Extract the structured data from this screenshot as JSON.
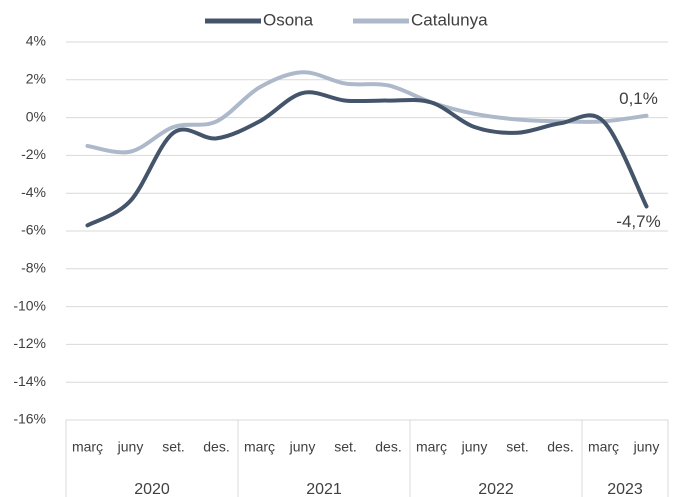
{
  "chart_data": {
    "type": "line",
    "categories": [
      "març",
      "juny",
      "set.",
      "des.",
      "març",
      "juny",
      "set.",
      "des.",
      "març",
      "juny",
      "set.",
      "des.",
      "març",
      "juny"
    ],
    "year_groups": [
      {
        "label": "2020",
        "span": 4
      },
      {
        "label": "2021",
        "span": 4
      },
      {
        "label": "2022",
        "span": 4
      },
      {
        "label": "2023",
        "span": 2
      }
    ],
    "series": [
      {
        "name": "Osona",
        "color": "#44546a",
        "values": [
          -5.7,
          -4.4,
          -0.8,
          -1.1,
          -0.2,
          1.3,
          0.9,
          0.9,
          0.8,
          -0.5,
          -0.8,
          -0.3,
          -0.2,
          -4.7
        ],
        "value_labels": [
          null,
          null,
          null,
          null,
          null,
          null,
          null,
          null,
          null,
          null,
          null,
          null,
          null,
          "-4,7%"
        ]
      },
      {
        "name": "Catalunya",
        "color": "#adb9ca",
        "values": [
          -1.5,
          -1.8,
          -0.5,
          -0.2,
          1.6,
          2.4,
          1.8,
          1.7,
          0.8,
          0.2,
          -0.1,
          -0.2,
          -0.2,
          0.1
        ],
        "value_labels": [
          null,
          null,
          null,
          null,
          null,
          null,
          null,
          null,
          null,
          null,
          null,
          null,
          null,
          "0,1%"
        ]
      }
    ],
    "ylim": [
      -16,
      4
    ],
    "yticks": [
      {
        "value": -16,
        "label": "-16%"
      },
      {
        "value": -14,
        "label": "-14%"
      },
      {
        "value": -12,
        "label": "-12%"
      },
      {
        "value": -10,
        "label": "-10%"
      },
      {
        "value": -8,
        "label": "-8%"
      },
      {
        "value": -6,
        "label": "-6%"
      },
      {
        "value": -4,
        "label": "-4%"
      },
      {
        "value": -2,
        "label": "-2%"
      },
      {
        "value": 0,
        "label": "0%"
      },
      {
        "value": 2,
        "label": "2%"
      },
      {
        "value": 4,
        "label": "4%"
      }
    ],
    "grid": true,
    "legend": "top"
  }
}
